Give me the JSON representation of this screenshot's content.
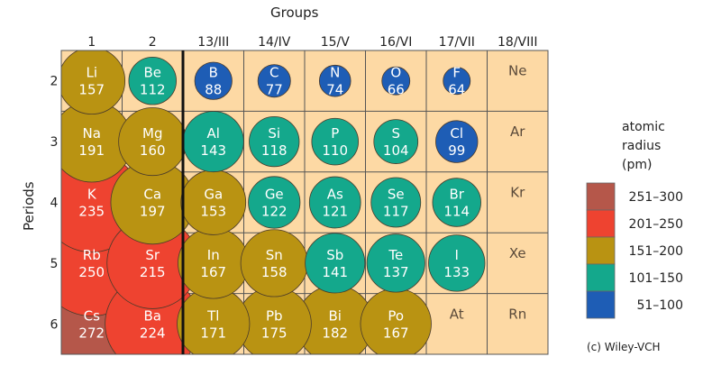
{
  "chart_data": {
    "type": "table",
    "title": "",
    "groups_label": "Groups",
    "periods_label": "Periods",
    "groups": [
      "1",
      "2",
      "13/III",
      "14/IV",
      "15/V",
      "16/VI",
      "17/VII",
      "18/VIII"
    ],
    "periods": [
      "2",
      "3",
      "4",
      "5",
      "6"
    ],
    "elements": [
      {
        "symbol": "Li",
        "radius": 157,
        "period": "2",
        "group": "1"
      },
      {
        "symbol": "Be",
        "radius": 112,
        "period": "2",
        "group": "2"
      },
      {
        "symbol": "B",
        "radius": 88,
        "period": "2",
        "group": "13/III"
      },
      {
        "symbol": "C",
        "radius": 77,
        "period": "2",
        "group": "14/IV"
      },
      {
        "symbol": "N",
        "radius": 74,
        "period": "2",
        "group": "15/V"
      },
      {
        "symbol": "O",
        "radius": 66,
        "period": "2",
        "group": "16/VI"
      },
      {
        "symbol": "F",
        "radius": 64,
        "period": "2",
        "group": "17/VII"
      },
      {
        "symbol": "Ne",
        "radius": null,
        "period": "2",
        "group": "18/VIII"
      },
      {
        "symbol": "Na",
        "radius": 191,
        "period": "3",
        "group": "1"
      },
      {
        "symbol": "Mg",
        "radius": 160,
        "period": "3",
        "group": "2"
      },
      {
        "symbol": "Al",
        "radius": 143,
        "period": "3",
        "group": "13/III"
      },
      {
        "symbol": "Si",
        "radius": 118,
        "period": "3",
        "group": "14/IV"
      },
      {
        "symbol": "P",
        "radius": 110,
        "period": "3",
        "group": "15/V"
      },
      {
        "symbol": "S",
        "radius": 104,
        "period": "3",
        "group": "16/VI"
      },
      {
        "symbol": "Cl",
        "radius": 99,
        "period": "3",
        "group": "17/VII"
      },
      {
        "symbol": "Ar",
        "radius": null,
        "period": "3",
        "group": "18/VIII"
      },
      {
        "symbol": "K",
        "radius": 235,
        "period": "4",
        "group": "1"
      },
      {
        "symbol": "Ca",
        "radius": 197,
        "period": "4",
        "group": "2"
      },
      {
        "symbol": "Ga",
        "radius": 153,
        "period": "4",
        "group": "13/III"
      },
      {
        "symbol": "Ge",
        "radius": 122,
        "period": "4",
        "group": "14/IV"
      },
      {
        "symbol": "As",
        "radius": 121,
        "period": "4",
        "group": "15/V"
      },
      {
        "symbol": "Se",
        "radius": 117,
        "period": "4",
        "group": "16/VI"
      },
      {
        "symbol": "Br",
        "radius": 114,
        "period": "4",
        "group": "17/VII"
      },
      {
        "symbol": "Kr",
        "radius": null,
        "period": "4",
        "group": "18/VIII"
      },
      {
        "symbol": "Rb",
        "radius": 250,
        "period": "5",
        "group": "1"
      },
      {
        "symbol": "Sr",
        "radius": 215,
        "period": "5",
        "group": "2"
      },
      {
        "symbol": "In",
        "radius": 167,
        "period": "5",
        "group": "13/III"
      },
      {
        "symbol": "Sn",
        "radius": 158,
        "period": "5",
        "group": "14/IV"
      },
      {
        "symbol": "Sb",
        "radius": 141,
        "period": "5",
        "group": "15/V"
      },
      {
        "symbol": "Te",
        "radius": 137,
        "period": "5",
        "group": "16/VI"
      },
      {
        "symbol": "I",
        "radius": 133,
        "period": "5",
        "group": "17/VII"
      },
      {
        "symbol": "Xe",
        "radius": null,
        "period": "5",
        "group": "18/VIII"
      },
      {
        "symbol": "Cs",
        "radius": 272,
        "period": "6",
        "group": "1"
      },
      {
        "symbol": "Ba",
        "radius": 224,
        "period": "6",
        "group": "2"
      },
      {
        "symbol": "Tl",
        "radius": 171,
        "period": "6",
        "group": "13/III"
      },
      {
        "symbol": "Pb",
        "radius": 175,
        "period": "6",
        "group": "14/IV"
      },
      {
        "symbol": "Bi",
        "radius": 182,
        "period": "6",
        "group": "15/V"
      },
      {
        "symbol": "Po",
        "radius": 167,
        "period": "6",
        "group": "16/VI"
      },
      {
        "symbol": "At",
        "radius": null,
        "period": "6",
        "group": "17/VII"
      },
      {
        "symbol": "Rn",
        "radius": null,
        "period": "6",
        "group": "18/VIII"
      }
    ],
    "legend": {
      "title_lines": [
        "atomic",
        "radius",
        "(pm)"
      ],
      "position": "right",
      "bins": [
        {
          "label": "251–300",
          "min": 251,
          "max": 300,
          "color": "#b5574a"
        },
        {
          "label": "201–250",
          "min": 201,
          "max": 250,
          "color": "#ee4330"
        },
        {
          "label": "151–200",
          "min": 151,
          "max": 200,
          "color": "#b99312"
        },
        {
          "label": "101–150",
          "min": 101,
          "max": 150,
          "color": "#14a88c"
        },
        {
          "label": "51–100",
          "min": 51,
          "max": 100,
          "color": "#1e5db5"
        }
      ]
    },
    "colors": {
      "cell_background": "#fdd9a4",
      "grid_line": "#555555",
      "circle_text": "#ffffff",
      "empty_cell_text": "#5a4a3a"
    }
  },
  "copyright": "(c) Wiley-VCH"
}
